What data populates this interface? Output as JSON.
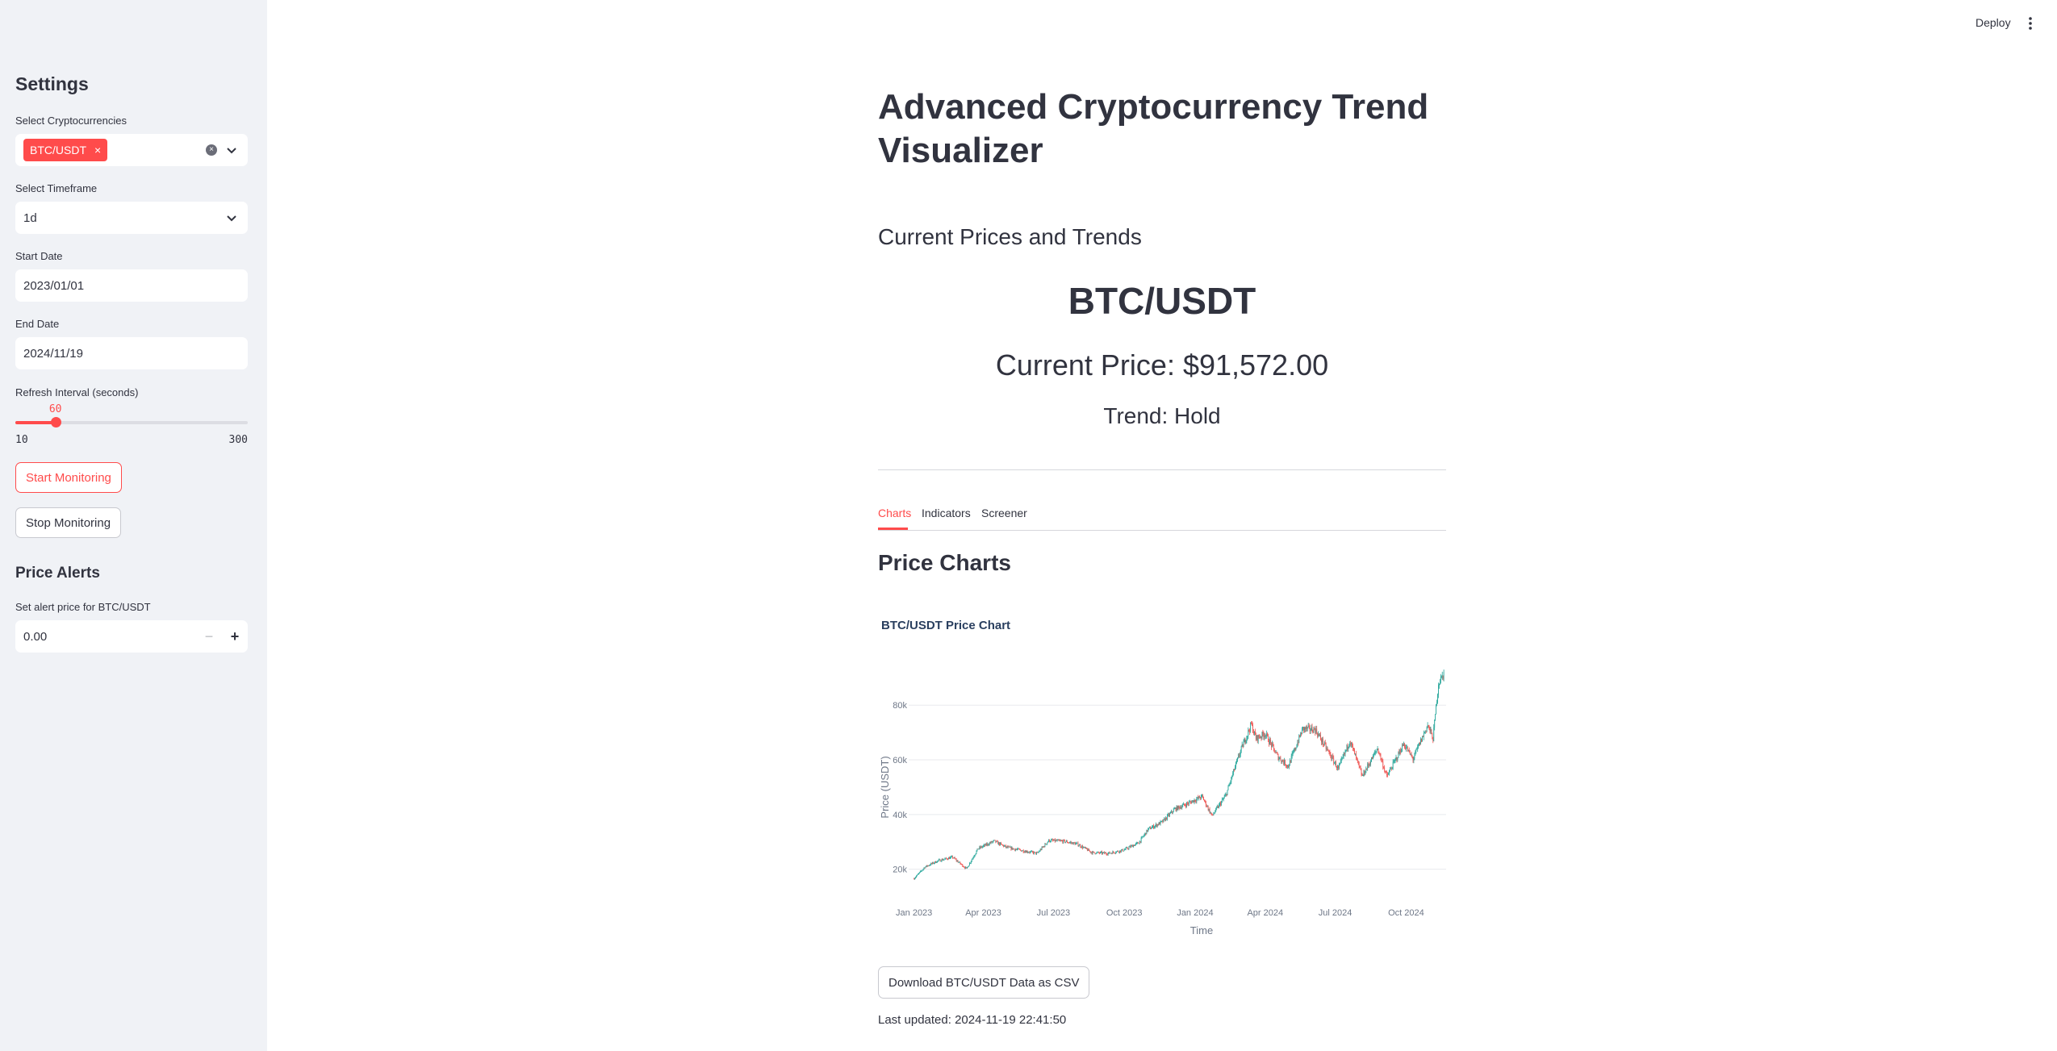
{
  "sidebar": {
    "header": "Settings",
    "crypto": {
      "label": "Select Cryptocurrencies",
      "selected": [
        "BTC/USDT"
      ],
      "chip_close": "×",
      "clear_glyph": "×"
    },
    "timeframe": {
      "label": "Select Timeframe",
      "value": "1d"
    },
    "start_date": {
      "label": "Start Date",
      "value": "2023/01/01"
    },
    "end_date": {
      "label": "End Date",
      "value": "2024/11/19"
    },
    "refresh": {
      "label": "Refresh Interval (seconds)",
      "value": 60,
      "min": 10,
      "max": 300,
      "value_text": "60",
      "min_text": "10",
      "max_text": "300"
    },
    "start_button": "Start Monitoring",
    "stop_button": "Stop Monitoring",
    "alerts": {
      "header": "Price Alerts",
      "label": "Set alert price for BTC/USDT",
      "value": "0.00",
      "minus": "−",
      "plus": "+"
    }
  },
  "topbar": {
    "deploy": "Deploy"
  },
  "main": {
    "title": "Advanced Cryptocurrency Trend Visualizer",
    "current_header": "Current Prices and Trends",
    "coin": "BTC/USDT",
    "price": "Current Price: $91,572.00",
    "trend": "Trend: Hold",
    "tabs": [
      {
        "label": "Charts",
        "active": true
      },
      {
        "label": "Indicators",
        "active": false
      },
      {
        "label": "Screener",
        "active": false
      }
    ],
    "section_header": "Price Charts",
    "download_button": "Download BTC/USDT Data as CSV",
    "last_updated": "Last updated: 2024-11-19 22:41:50"
  },
  "colors": {
    "accent": "#ff4b4b",
    "increasing": "#26a69a",
    "decreasing": "#ef5350"
  },
  "chart_data": {
    "type": "candlestick",
    "title": "BTC/USDT Price Chart",
    "xlabel": "Time",
    "ylabel": "Price (USDT)",
    "x_ticks": [
      "Jan 2023",
      "Apr 2023",
      "Jul 2023",
      "Oct 2023",
      "Jan 2024",
      "Apr 2024",
      "Jul 2024",
      "Oct 2024"
    ],
    "y_ticks": [
      20000,
      40000,
      60000,
      80000
    ],
    "y_tick_labels": [
      "20k",
      "40k",
      "60k",
      "80k"
    ],
    "ylim": [
      14000,
      96000
    ],
    "xlim": [
      "2022-12-25",
      "2024-11-22"
    ],
    "grid": true,
    "approx_close_by_date": [
      [
        "2023-01-01",
        16600
      ],
      [
        "2023-01-15",
        20800
      ],
      [
        "2023-02-01",
        23100
      ],
      [
        "2023-02-20",
        24400
      ],
      [
        "2023-03-10",
        20200
      ],
      [
        "2023-03-25",
        27500
      ],
      [
        "2023-04-15",
        30300
      ],
      [
        "2023-05-01",
        28000
      ],
      [
        "2023-05-20",
        26900
      ],
      [
        "2023-06-10",
        25800
      ],
      [
        "2023-06-25",
        30500
      ],
      [
        "2023-07-15",
        30200
      ],
      [
        "2023-08-01",
        29200
      ],
      [
        "2023-08-20",
        26100
      ],
      [
        "2023-09-10",
        25800
      ],
      [
        "2023-09-30",
        27000
      ],
      [
        "2023-10-20",
        29700
      ],
      [
        "2023-11-01",
        34600
      ],
      [
        "2023-11-20",
        37400
      ],
      [
        "2023-12-05",
        41900
      ],
      [
        "2023-12-20",
        43700
      ],
      [
        "2024-01-10",
        46600
      ],
      [
        "2024-01-23",
        39500
      ],
      [
        "2024-02-10",
        47100
      ],
      [
        "2024-02-28",
        62500
      ],
      [
        "2024-03-14",
        73000
      ],
      [
        "2024-03-20",
        67800
      ],
      [
        "2024-04-01",
        69600
      ],
      [
        "2024-04-17",
        61300
      ],
      [
        "2024-05-01",
        57700
      ],
      [
        "2024-05-20",
        71400
      ],
      [
        "2024-06-05",
        71100
      ],
      [
        "2024-06-25",
        61500
      ],
      [
        "2024-07-05",
        56600
      ],
      [
        "2024-07-20",
        67100
      ],
      [
        "2024-08-05",
        54000
      ],
      [
        "2024-08-25",
        64200
      ],
      [
        "2024-09-06",
        53900
      ],
      [
        "2024-09-28",
        65800
      ],
      [
        "2024-10-10",
        60300
      ],
      [
        "2024-10-29",
        72700
      ],
      [
        "2024-11-05",
        67800
      ],
      [
        "2024-11-12",
        88000
      ],
      [
        "2024-11-19",
        91572
      ]
    ]
  }
}
